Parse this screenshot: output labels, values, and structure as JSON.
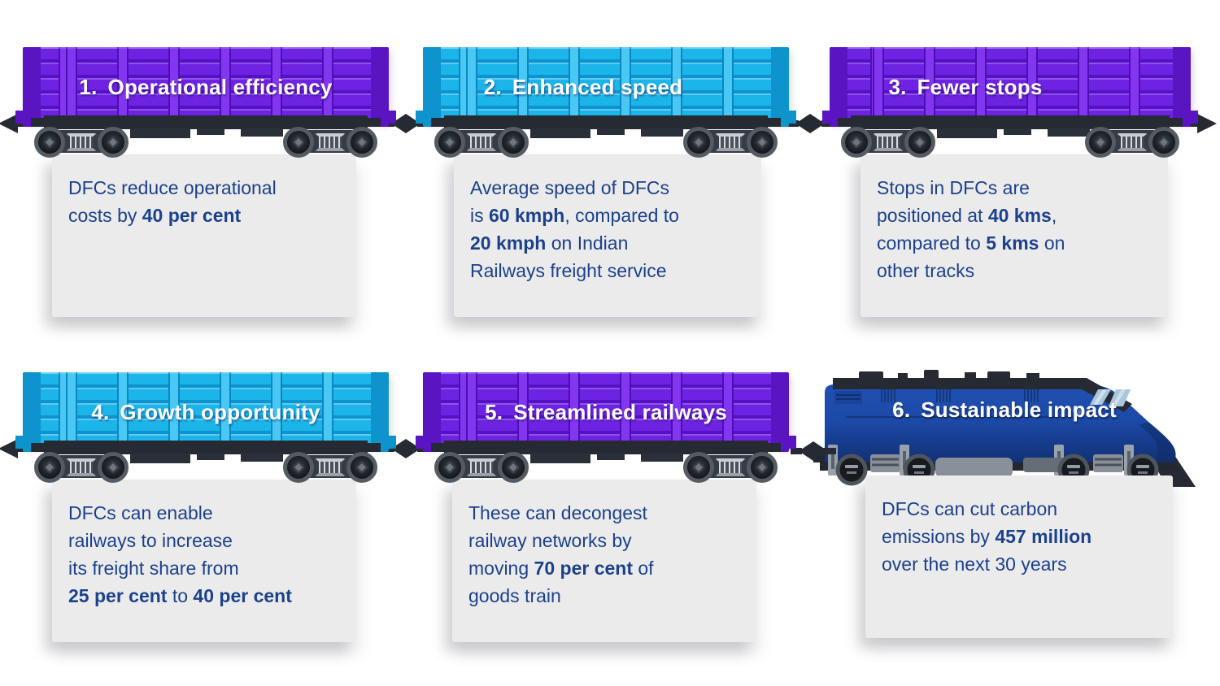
{
  "page": {
    "background": "#ffffff",
    "card_background": "#EBEBEC",
    "text_color": "#1B418C",
    "title_color": "#FFFFFF"
  },
  "colors": {
    "purple_wagon": "#6F23E2",
    "cyan_wagon": "#1CB5E9",
    "locomotive_navy": "#1C49A6",
    "chassis_dark": "#262B33"
  },
  "icons": {
    "wagon": "freight-wagon-icon",
    "locomotive": "locomotive-icon",
    "coupler": "coupler-icon",
    "bogie": "wheel-bogie-icon"
  },
  "items": [
    {
      "number": "1.",
      "title": "Operational efficiency",
      "vehicle": "wagon",
      "color": "purple",
      "body": [
        {
          "t": "DFCs reduce operational\ncosts by "
        },
        {
          "t": "40 per cent",
          "b": true
        }
      ]
    },
    {
      "number": "2.",
      "title": "Enhanced speed",
      "vehicle": "wagon",
      "color": "cyan",
      "body": [
        {
          "t": "Average speed of DFCs\nis "
        },
        {
          "t": "60 kmph",
          "b": true
        },
        {
          "t": ", compared to\n"
        },
        {
          "t": "20 kmph",
          "b": true
        },
        {
          "t": " on Indian\nRailways freight service"
        }
      ]
    },
    {
      "number": "3.",
      "title": "Fewer stops",
      "vehicle": "wagon",
      "color": "purple",
      "body": [
        {
          "t": "Stops in DFCs are\npositioned at "
        },
        {
          "t": "40 kms",
          "b": true
        },
        {
          "t": ",\ncompared to "
        },
        {
          "t": "5 kms",
          "b": true
        },
        {
          "t": " on\nother tracks"
        }
      ]
    },
    {
      "number": "4.",
      "title": "Growth opportunity",
      "vehicle": "wagon",
      "color": "cyan",
      "body": [
        {
          "t": "DFCs can enable\nrailways to increase\nits freight share from\n"
        },
        {
          "t": "25 per cent",
          "b": true
        },
        {
          "t": " to "
        },
        {
          "t": "40 per cent",
          "b": true
        }
      ]
    },
    {
      "number": "5.",
      "title": "Streamlined railways",
      "vehicle": "wagon",
      "color": "purple",
      "body": [
        {
          "t": "These can decongest\nrailway networks by\nmoving "
        },
        {
          "t": "70 per cent",
          "b": true
        },
        {
          "t": " of\ngoods train"
        }
      ]
    },
    {
      "number": "6.",
      "title": "Sustainable impact",
      "vehicle": "locomotive",
      "color": "navy",
      "body": [
        {
          "t": "DFCs can cut carbon\nemissions by "
        },
        {
          "t": "457 million",
          "b": true
        },
        {
          "t": "\nover the next 30 years"
        }
      ]
    }
  ]
}
